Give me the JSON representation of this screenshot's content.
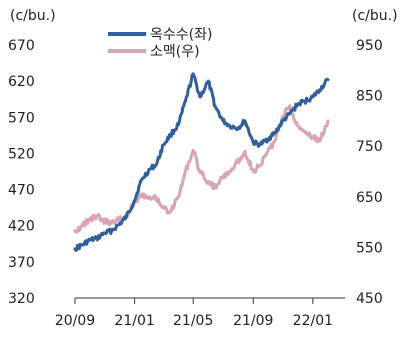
{
  "chart_data": {
    "type": "line",
    "left_unit": "(c/bu.)",
    "right_unit": "(c/bu.)",
    "y_left": {
      "ticks": [
        "670",
        "620",
        "570",
        "520",
        "470",
        "420",
        "370",
        "320"
      ],
      "min": 320,
      "max": 670
    },
    "y_right": {
      "ticks": [
        "950",
        "850",
        "750",
        "650",
        "550",
        "450"
      ],
      "min": 450,
      "max": 950
    },
    "x_ticks": [
      "20/09",
      "21/01",
      "21/05",
      "21/09",
      "22/01"
    ],
    "x_range": [
      "2020-09",
      "2022-02"
    ],
    "legend_position": "top-left",
    "series": [
      {
        "name": "옥수수(좌)",
        "axis": "left",
        "color": "#2e5f9e",
        "points": [
          [
            "2020-09-01",
            388
          ],
          [
            "2020-09-15",
            393
          ],
          [
            "2020-10-01",
            400
          ],
          [
            "2020-10-15",
            402
          ],
          [
            "2020-11-01",
            410
          ],
          [
            "2020-11-15",
            413
          ],
          [
            "2020-12-01",
            422
          ],
          [
            "2020-12-15",
            432
          ],
          [
            "2021-01-01",
            455
          ],
          [
            "2021-01-15",
            483
          ],
          [
            "2021-02-01",
            498
          ],
          [
            "2021-02-15",
            505
          ],
          [
            "2021-03-01",
            532
          ],
          [
            "2021-03-15",
            545
          ],
          [
            "2021-04-01",
            560
          ],
          [
            "2021-04-15",
            592
          ],
          [
            "2021-05-01",
            630
          ],
          [
            "2021-05-15",
            598
          ],
          [
            "2021-06-01",
            620
          ],
          [
            "2021-06-15",
            585
          ],
          [
            "2021-07-01",
            565
          ],
          [
            "2021-07-15",
            558
          ],
          [
            "2021-08-01",
            555
          ],
          [
            "2021-08-15",
            565
          ],
          [
            "2021-09-01",
            535
          ],
          [
            "2021-09-15",
            532
          ],
          [
            "2021-10-01",
            540
          ],
          [
            "2021-10-15",
            548
          ],
          [
            "2021-11-01",
            565
          ],
          [
            "2021-11-15",
            575
          ],
          [
            "2021-12-01",
            588
          ],
          [
            "2021-12-15",
            592
          ],
          [
            "2022-01-01",
            598
          ],
          [
            "2022-01-15",
            608
          ],
          [
            "2022-02-01",
            622
          ]
        ]
      },
      {
        "name": "소맥(우)",
        "axis": "right",
        "color": "#d9a4b4",
        "points": [
          [
            "2020-09-01",
            583
          ],
          [
            "2020-09-15",
            592
          ],
          [
            "2020-10-01",
            605
          ],
          [
            "2020-10-15",
            612
          ],
          [
            "2020-11-01",
            602
          ],
          [
            "2020-11-15",
            598
          ],
          [
            "2020-12-01",
            605
          ],
          [
            "2020-12-15",
            612
          ],
          [
            "2021-01-01",
            640
          ],
          [
            "2021-01-15",
            655
          ],
          [
            "2021-02-01",
            650
          ],
          [
            "2021-02-15",
            648
          ],
          [
            "2021-03-01",
            628
          ],
          [
            "2021-03-15",
            620
          ],
          [
            "2021-04-01",
            650
          ],
          [
            "2021-04-15",
            700
          ],
          [
            "2021-05-01",
            742
          ],
          [
            "2021-05-15",
            698
          ],
          [
            "2021-06-01",
            680
          ],
          [
            "2021-06-15",
            668
          ],
          [
            "2021-07-01",
            690
          ],
          [
            "2021-07-15",
            700
          ],
          [
            "2021-08-01",
            720
          ],
          [
            "2021-08-15",
            740
          ],
          [
            "2021-09-01",
            700
          ],
          [
            "2021-09-15",
            712
          ],
          [
            "2021-10-01",
            740
          ],
          [
            "2021-10-15",
            760
          ],
          [
            "2021-11-01",
            810
          ],
          [
            "2021-11-15",
            830
          ],
          [
            "2021-12-01",
            790
          ],
          [
            "2021-12-15",
            780
          ],
          [
            "2022-01-01",
            768
          ],
          [
            "2022-01-15",
            760
          ],
          [
            "2022-02-01",
            800
          ]
        ]
      }
    ]
  }
}
